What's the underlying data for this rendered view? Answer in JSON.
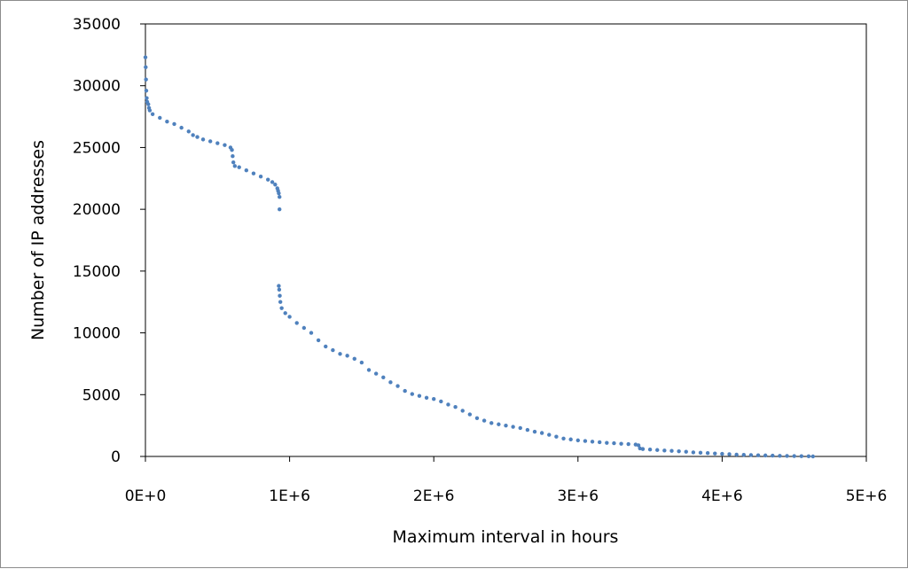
{
  "colors": {
    "series": "#4f81bd",
    "axis": "#000000",
    "frame": "#8c8c8c",
    "background": "#ffffff"
  },
  "chart_data": {
    "type": "scatter",
    "title": "",
    "xlabel": "Maximum interval in hours",
    "ylabel": "Number of IP addresses",
    "xlim": [
      0,
      5000000
    ],
    "ylim": [
      0,
      35000
    ],
    "x_tick_values": [
      0,
      1000000,
      2000000,
      3000000,
      4000000,
      5000000
    ],
    "x_tick_labels": [
      "0E+0",
      "1E+6",
      "2E+6",
      "3E+6",
      "4E+6",
      "5E+6"
    ],
    "y_tick_values": [
      0,
      5000,
      10000,
      15000,
      20000,
      25000,
      30000,
      35000
    ],
    "y_tick_labels": [
      "0",
      "5000",
      "10000",
      "15000",
      "20000",
      "25000",
      "30000",
      "35000"
    ],
    "grid": false,
    "legend": "none",
    "series": [
      {
        "points": [
          [
            0,
            32300
          ],
          [
            2000,
            31500
          ],
          [
            4000,
            30500
          ],
          [
            6000,
            29600
          ],
          [
            9000,
            29000
          ],
          [
            12000,
            28700
          ],
          [
            20000,
            28500
          ],
          [
            25000,
            28200
          ],
          [
            30000,
            28000
          ],
          [
            50000,
            27700
          ],
          [
            100000,
            27400
          ],
          [
            150000,
            27100
          ],
          [
            200000,
            26900
          ],
          [
            250000,
            26600
          ],
          [
            300000,
            26300
          ],
          [
            330000,
            26000
          ],
          [
            360000,
            25850
          ],
          [
            400000,
            25650
          ],
          [
            450000,
            25500
          ],
          [
            500000,
            25350
          ],
          [
            550000,
            25200
          ],
          [
            590000,
            25000
          ],
          [
            600000,
            24800
          ],
          [
            605000,
            24300
          ],
          [
            610000,
            23800
          ],
          [
            620000,
            23500
          ],
          [
            650000,
            23400
          ],
          [
            700000,
            23150
          ],
          [
            750000,
            22900
          ],
          [
            800000,
            22650
          ],
          [
            850000,
            22400
          ],
          [
            880000,
            22200
          ],
          [
            900000,
            22000
          ],
          [
            915000,
            21700
          ],
          [
            920000,
            21500
          ],
          [
            925000,
            21300
          ],
          [
            930000,
            21000
          ],
          [
            930000,
            20000
          ],
          [
            925000,
            13800
          ],
          [
            928000,
            13500
          ],
          [
            932000,
            13000
          ],
          [
            936000,
            12500
          ],
          [
            945000,
            12000
          ],
          [
            970000,
            11600
          ],
          [
            1000000,
            11300
          ],
          [
            1050000,
            10800
          ],
          [
            1100000,
            10400
          ],
          [
            1150000,
            10000
          ],
          [
            1200000,
            9400
          ],
          [
            1250000,
            8900
          ],
          [
            1300000,
            8600
          ],
          [
            1350000,
            8300
          ],
          [
            1400000,
            8150
          ],
          [
            1450000,
            7900
          ],
          [
            1500000,
            7600
          ],
          [
            1550000,
            7000
          ],
          [
            1600000,
            6700
          ],
          [
            1650000,
            6400
          ],
          [
            1700000,
            6000
          ],
          [
            1750000,
            5700
          ],
          [
            1800000,
            5300
          ],
          [
            1850000,
            5050
          ],
          [
            1900000,
            4900
          ],
          [
            1950000,
            4750
          ],
          [
            2000000,
            4650
          ],
          [
            2050000,
            4450
          ],
          [
            2100000,
            4200
          ],
          [
            2150000,
            4000
          ],
          [
            2200000,
            3700
          ],
          [
            2250000,
            3400
          ],
          [
            2300000,
            3100
          ],
          [
            2350000,
            2900
          ],
          [
            2400000,
            2700
          ],
          [
            2450000,
            2600
          ],
          [
            2500000,
            2500
          ],
          [
            2550000,
            2400
          ],
          [
            2600000,
            2300
          ],
          [
            2650000,
            2150
          ],
          [
            2700000,
            2000
          ],
          [
            2750000,
            1900
          ],
          [
            2800000,
            1750
          ],
          [
            2850000,
            1600
          ],
          [
            2900000,
            1450
          ],
          [
            2950000,
            1380
          ],
          [
            3000000,
            1300
          ],
          [
            3050000,
            1250
          ],
          [
            3100000,
            1200
          ],
          [
            3150000,
            1150
          ],
          [
            3200000,
            1100
          ],
          [
            3250000,
            1070
          ],
          [
            3300000,
            1030
          ],
          [
            3350000,
            1000
          ],
          [
            3400000,
            960
          ],
          [
            3420000,
            900
          ],
          [
            3430000,
            650
          ],
          [
            3450000,
            600
          ],
          [
            3500000,
            560
          ],
          [
            3550000,
            520
          ],
          [
            3600000,
            480
          ],
          [
            3650000,
            450
          ],
          [
            3700000,
            420
          ],
          [
            3750000,
            380
          ],
          [
            3800000,
            330
          ],
          [
            3850000,
            300
          ],
          [
            3900000,
            270
          ],
          [
            3950000,
            240
          ],
          [
            4000000,
            210
          ],
          [
            4050000,
            180
          ],
          [
            4100000,
            150
          ],
          [
            4150000,
            130
          ],
          [
            4200000,
            110
          ],
          [
            4250000,
            95
          ],
          [
            4300000,
            80
          ],
          [
            4350000,
            65
          ],
          [
            4400000,
            50
          ],
          [
            4450000,
            40
          ],
          [
            4500000,
            30
          ],
          [
            4550000,
            20
          ],
          [
            4600000,
            10
          ],
          [
            4630000,
            0
          ]
        ]
      }
    ]
  }
}
